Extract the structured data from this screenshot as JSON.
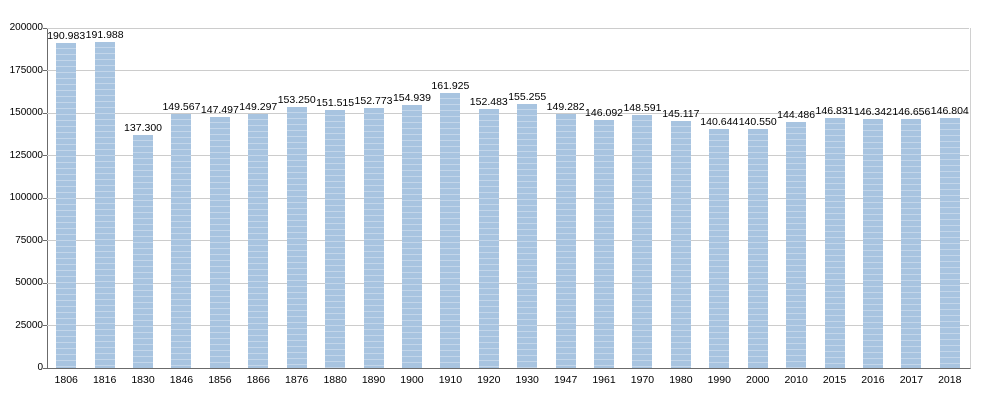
{
  "chart_data": {
    "type": "bar",
    "title": "",
    "xlabel": "",
    "ylabel": "",
    "categories": [
      "1806",
      "1816",
      "1830",
      "1846",
      "1856",
      "1866",
      "1876",
      "1880",
      "1890",
      "1900",
      "1910",
      "1920",
      "1930",
      "1947",
      "1961",
      "1970",
      "1980",
      "1990",
      "2000",
      "2010",
      "2015",
      "2016",
      "2017",
      "2018"
    ],
    "values": [
      190983,
      191988,
      137300,
      149567,
      147497,
      149297,
      153250,
      151515,
      152773,
      154939,
      161925,
      152483,
      155255,
      149282,
      146092,
      148591,
      145117,
      140644,
      140550,
      144486,
      146831,
      146342,
      146656,
      146804
    ],
    "value_labels": [
      "190.983",
      "191.988",
      "137.300",
      "149.567",
      "147.497",
      "149.297",
      "153.250",
      "151.515",
      "152.773",
      "154.939",
      "161.925",
      "152.483",
      "155.255",
      "149.282",
      "146.092",
      "148.591",
      "145.117",
      "140.644",
      "140.550",
      "144.486",
      "146.831",
      "146.342",
      "146.656",
      "146.804"
    ],
    "ylim": [
      0,
      200000
    ],
    "ytick_interval": 25000,
    "yticks": [
      "0",
      "25000",
      "50000",
      "75000",
      "100000",
      "125000",
      "150000",
      "175000",
      "200000"
    ],
    "grid": true,
    "legend": "none",
    "colors": {
      "bar": "#a8c4e0",
      "bar_stripe": "#c3d6ea",
      "gridline": "#cccccc",
      "axis": "#6b6b6b",
      "text": "#000000"
    }
  }
}
